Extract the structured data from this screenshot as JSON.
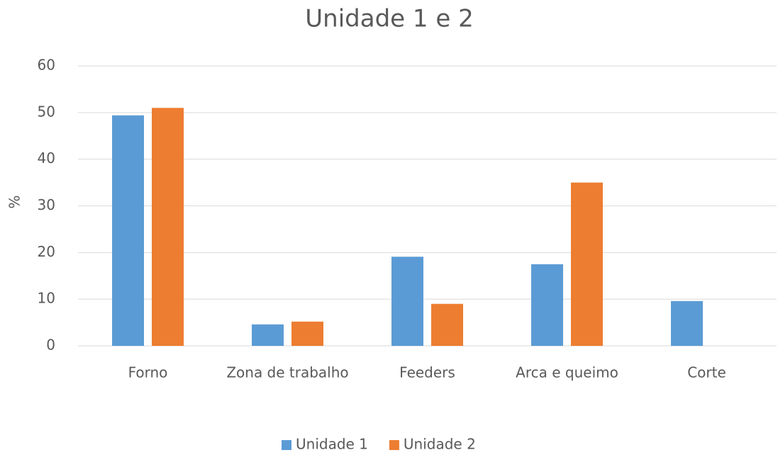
{
  "chart_data": {
    "type": "bar",
    "title": "Unidade 1 e 2",
    "y_label": "%",
    "categories": [
      "Forno",
      "Zona de trabalho",
      "Feeders",
      "Arca e queimo",
      "Corte"
    ],
    "series": [
      {
        "name": "Unidade 1",
        "color": "#5b9bd5",
        "values": [
          49.4,
          4.6,
          19.1,
          17.5,
          9.6
        ]
      },
      {
        "name": "Unidade 2",
        "color": "#ed7d31",
        "values": [
          51,
          5.2,
          9,
          35,
          0
        ]
      }
    ],
    "ylim": [
      0,
      60
    ],
    "yticks": [
      0,
      10,
      20,
      30,
      40,
      50,
      60
    ],
    "grid": true,
    "legend": "bottom"
  }
}
